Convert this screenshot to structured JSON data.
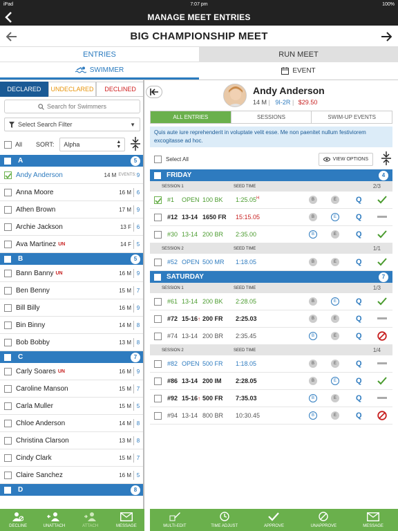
{
  "status": {
    "device": "iPad",
    "time": "7:07 pm",
    "battery": "100%"
  },
  "nav": {
    "title": "MANAGE MEET ENTRIES"
  },
  "meet": {
    "title": "BIG CHAMPIONSHIP MEET"
  },
  "tabs": {
    "entries": "ENTRIES",
    "run_meet": "RUN MEET"
  },
  "subtabs": {
    "swimmer": "SWIMMER",
    "event": "EVENT"
  },
  "segments": {
    "declared": "DECLARED",
    "undeclared": "UNDECLARED",
    "declined": "DECLINED"
  },
  "search": {
    "placeholder": "Search for Swimmers"
  },
  "filter": {
    "label": "Select Search Filter"
  },
  "sort": {
    "all": "All",
    "sort_label": "SORT:",
    "value": "Alpha"
  },
  "groups": [
    {
      "letter": "A",
      "count": "5",
      "swimmers": [
        {
          "name": "Andy Anderson",
          "un": "",
          "age": "14",
          "g": "M",
          "n": "9",
          "selected": true,
          "events": "EVENTS:"
        },
        {
          "name": "Anna Moore",
          "un": "",
          "age": "16",
          "g": "M",
          "n": "6"
        },
        {
          "name": "Athen Brown",
          "un": "",
          "age": "17",
          "g": "M",
          "n": "9"
        },
        {
          "name": "Archie Jackson",
          "un": "",
          "age": "13",
          "g": "F",
          "n": "6"
        },
        {
          "name": "Ava Martinez",
          "un": "UN",
          "age": "14",
          "g": "F",
          "n": "5"
        }
      ]
    },
    {
      "letter": "B",
      "count": "5",
      "swimmers": [
        {
          "name": "Bann Banny",
          "un": "UN",
          "age": "16",
          "g": "M",
          "n": "9"
        },
        {
          "name": "Ben Benny",
          "un": "",
          "age": "15",
          "g": "M",
          "n": "7"
        },
        {
          "name": "Bill Billy",
          "un": "",
          "age": "16",
          "g": "M",
          "n": "9"
        },
        {
          "name": "Bin Binny",
          "un": "",
          "age": "14",
          "g": "M",
          "n": "8"
        },
        {
          "name": "Bob Bobby",
          "un": "",
          "age": "13",
          "g": "M",
          "n": "8"
        }
      ]
    },
    {
      "letter": "C",
      "count": "7",
      "swimmers": [
        {
          "name": "Carly Soares",
          "un": "UN",
          "age": "16",
          "g": "M",
          "n": "9"
        },
        {
          "name": "Caroline Manson",
          "un": "",
          "age": "15",
          "g": "M",
          "n": "7"
        },
        {
          "name": "Carla Muller",
          "un": "",
          "age": "15",
          "g": "M",
          "n": "5"
        },
        {
          "name": "Chloe Anderson",
          "un": "",
          "age": "14",
          "g": "M",
          "n": "8"
        },
        {
          "name": "Christina Clarson",
          "un": "",
          "age": "13",
          "g": "M",
          "n": "8"
        },
        {
          "name": "Cindy Clark",
          "un": "",
          "age": "15",
          "g": "M",
          "n": "7"
        },
        {
          "name": "Claire Sanchez",
          "un": "",
          "age": "16",
          "g": "M",
          "n": "5"
        }
      ]
    },
    {
      "letter": "D",
      "count": "8",
      "swimmers": []
    }
  ],
  "left_actions": [
    {
      "label": "DECLINE",
      "icon": "decline-icon",
      "enabled": true
    },
    {
      "label": "UNATTACH",
      "icon": "unattach-icon",
      "enabled": true
    },
    {
      "label": "ATTACH",
      "icon": "attach-icon",
      "enabled": false
    },
    {
      "label": "MESSAGE",
      "icon": "message-icon",
      "enabled": true
    }
  ],
  "profile": {
    "name": "Andy Anderson",
    "age": "14",
    "gender": "M",
    "record": "9I-2R",
    "fee": "$29.50"
  },
  "right_tabs": {
    "all": "ALL ENTRIES",
    "sessions": "SESSIONS",
    "swimup": "SWIM-UP EVENTS"
  },
  "note": "Quis aute iure reprehenderit in voluptate velit esse. Me non paenitet nullum festiviorem excogitasse ad hoc.",
  "select_all": "Select All",
  "view_options": "VIEW OPTIONS",
  "session_label": "SESSION",
  "seed_time_label": "SEED TIME",
  "days": [
    {
      "day": "FRIDAY",
      "count": "4",
      "sessions": [
        {
          "session": "SESSION 1",
          "score": "2/3",
          "entries": [
            {
              "num": "#1",
              "age": "OPEN",
              "event": "100 BK",
              "time": "1:25.05",
              "flag": "H",
              "color": "green",
              "checked": true,
              "b": "gray",
              "e": "gray",
              "status": "check"
            },
            {
              "num": "#12",
              "age": "13-14",
              "event": "1650 FR",
              "time": "15:15.05",
              "flag": "",
              "color": "dark",
              "time_color": "red",
              "checked": false,
              "b": "gray",
              "e": "blue",
              "status": "dash"
            },
            {
              "num": "#30",
              "age": "13-14",
              "event": "200 BR",
              "time": "2:35.00",
              "flag": "",
              "color": "green",
              "checked": false,
              "b": "blue",
              "e": "gray",
              "status": "check"
            }
          ]
        },
        {
          "session": "SESSION 2",
          "score": "1/1",
          "entries": [
            {
              "num": "#52",
              "age": "OPEN",
              "event": "500 MR",
              "time": "1:18.05",
              "flag": "",
              "color": "blue",
              "checked": false,
              "b": "gray",
              "e": "gray",
              "status": "check"
            }
          ]
        }
      ]
    },
    {
      "day": "SATURDAY",
      "count": "7",
      "sessions": [
        {
          "session": "SESSION 1",
          "score": "1/3",
          "entries": [
            {
              "num": "#61",
              "age": "13-14",
              "event": "200 BK",
              "time": "2:28.05",
              "flag": "",
              "color": "green",
              "checked": false,
              "b": "gray",
              "e": "blue",
              "status": "check"
            },
            {
              "num": "#72",
              "age": "15-16",
              "event": "200 FR",
              "time": "2:25.03",
              "flag": "",
              "color": "dark",
              "up": true,
              "checked": false,
              "b": "gray",
              "e": "gray",
              "status": "dash"
            },
            {
              "num": "#74",
              "age": "13-14",
              "event": "200 BR",
              "time": "2:35.45",
              "flag": "",
              "color": "gray",
              "checked": false,
              "b": "blue",
              "e": "gray",
              "status": "no"
            }
          ]
        },
        {
          "session": "SESSION 2",
          "score": "1/4",
          "entries": [
            {
              "num": "#82",
              "age": "OPEN",
              "event": "500 FR",
              "time": "1:18.05",
              "flag": "",
              "color": "blue",
              "checked": false,
              "b": "gray",
              "e": "gray",
              "status": "dash"
            },
            {
              "num": "#86",
              "age": "13-14",
              "event": "200 IM",
              "time": "2:28.05",
              "flag": "",
              "color": "dark",
              "checked": false,
              "b": "gray",
              "e": "blue",
              "status": "check"
            },
            {
              "num": "#92",
              "age": "15-16",
              "event": "500 FR",
              "time": "7:35.03",
              "flag": "",
              "color": "dark",
              "up": true,
              "checked": false,
              "b": "blue",
              "e": "gray",
              "status": "dash"
            },
            {
              "num": "#94",
              "age": "13-14",
              "event": "800 BR",
              "time": "10:30.45",
              "flag": "",
              "color": "gray",
              "checked": false,
              "b": "blue",
              "e": "gray",
              "status": "no"
            }
          ]
        }
      ]
    }
  ],
  "right_actions": [
    {
      "label": "MULTI-EDIT",
      "icon": "edit-icon"
    },
    {
      "label": "TIME ADJUST",
      "icon": "clock-icon"
    },
    {
      "label": "APPROVE",
      "icon": "check-icon"
    },
    {
      "label": "UNAPPROVE",
      "icon": "unapprove-icon"
    },
    {
      "label": "MESSAGE",
      "icon": "message-icon"
    }
  ],
  "colors": {
    "blue": "#2e7bbf",
    "green": "#6ab04c",
    "red": "#c72020",
    "navy": "#1a5a95"
  }
}
